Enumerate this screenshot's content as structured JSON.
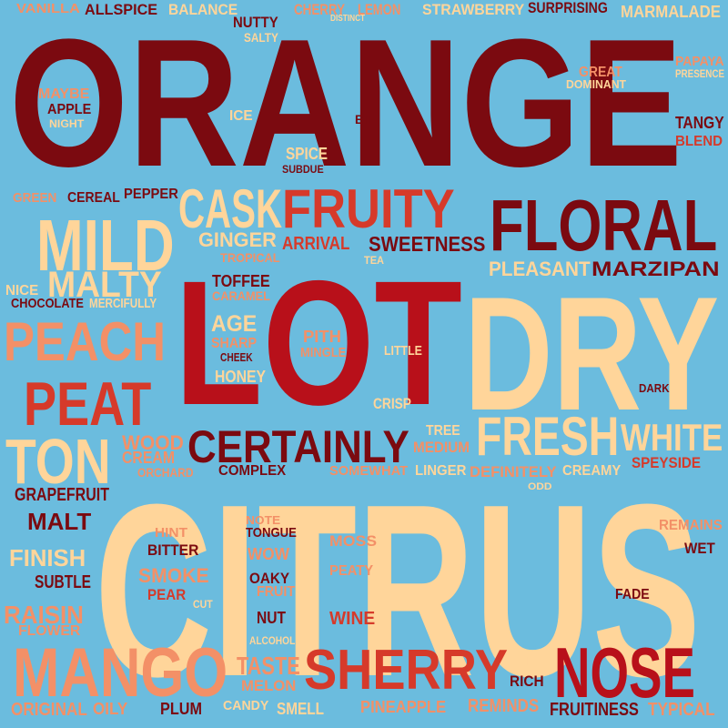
{
  "palette": {
    "background": "#6bbcde",
    "maroon": "#7b0a10",
    "red": "#b8101a",
    "tomato": "#d63a2a",
    "salmon": "#f39067",
    "peach": "#ffd59a"
  },
  "words": [
    {
      "id": "orange",
      "text": "ORANGE",
      "color": "maroon"
    },
    {
      "id": "citrus",
      "text": "CITRUS",
      "color": "peach"
    },
    {
      "id": "lot",
      "text": "LOT",
      "color": "red"
    },
    {
      "id": "dry",
      "text": "DRY",
      "color": "peach"
    },
    {
      "id": "floral",
      "text": "FLORAL",
      "color": "maroon"
    },
    {
      "id": "fruity",
      "text": "FRUITY",
      "color": "tomato"
    },
    {
      "id": "cask",
      "text": "CASK",
      "color": "peach"
    },
    {
      "id": "mild",
      "text": "MILD",
      "color": "peach"
    },
    {
      "id": "malty",
      "text": "MALTY",
      "color": "peach"
    },
    {
      "id": "peach",
      "text": "PEACH",
      "color": "salmon"
    },
    {
      "id": "peat",
      "text": "PEAT",
      "color": "tomato"
    },
    {
      "id": "ton",
      "text": "TON",
      "color": "peach"
    },
    {
      "id": "fresh",
      "text": "FRESH",
      "color": "peach"
    },
    {
      "id": "white",
      "text": "WHITE",
      "color": "peach"
    },
    {
      "id": "certainly",
      "text": "CERTAINLY",
      "color": "maroon"
    },
    {
      "id": "mango",
      "text": "MANGO",
      "color": "salmon"
    },
    {
      "id": "sherry",
      "text": "SHERRY",
      "color": "tomato"
    },
    {
      "id": "nose",
      "text": "NOSE",
      "color": "red"
    },
    {
      "id": "marzipan",
      "text": "MARZIPAN",
      "color": "maroon"
    },
    {
      "id": "pleasant",
      "text": "PLEASANT",
      "color": "peach"
    },
    {
      "id": "sweetness",
      "text": "SWEETNESS",
      "color": "maroon"
    },
    {
      "id": "arrival",
      "text": "ARRIVAL",
      "color": "tomato"
    },
    {
      "id": "ginger",
      "text": "GINGER",
      "color": "peach"
    },
    {
      "id": "tropical",
      "text": "TROPICAL",
      "color": "salmon"
    },
    {
      "id": "toffee",
      "text": "TOFFEE",
      "color": "maroon"
    },
    {
      "id": "caramel",
      "text": "CARAMEL",
      "color": "salmon"
    },
    {
      "id": "age",
      "text": "AGE",
      "color": "peach"
    },
    {
      "id": "sharp",
      "text": "SHARP",
      "color": "salmon"
    },
    {
      "id": "cheek",
      "text": "CHEEK",
      "color": "maroon"
    },
    {
      "id": "honey",
      "text": "HONEY",
      "color": "peach"
    },
    {
      "id": "pith",
      "text": "PITH",
      "color": "salmon"
    },
    {
      "id": "mingle",
      "text": "MINGLE",
      "color": "salmon"
    },
    {
      "id": "little",
      "text": "LITTLE",
      "color": "peach"
    },
    {
      "id": "crisp",
      "text": "CRISP",
      "color": "peach"
    },
    {
      "id": "tea",
      "text": "TEA",
      "color": "peach"
    },
    {
      "id": "vanilla",
      "text": "VANILLA",
      "color": "salmon"
    },
    {
      "id": "allspice",
      "text": "ALLSPICE",
      "color": "maroon"
    },
    {
      "id": "balance",
      "text": "BALANCE",
      "color": "peach"
    },
    {
      "id": "nutty",
      "text": "NUTTY",
      "color": "maroon"
    },
    {
      "id": "salty",
      "text": "SALTY",
      "color": "peach"
    },
    {
      "id": "cherry",
      "text": "CHERRY",
      "color": "salmon"
    },
    {
      "id": "distinct",
      "text": "DISTINCT",
      "color": "peach"
    },
    {
      "id": "lemon",
      "text": "LEMON",
      "color": "salmon"
    },
    {
      "id": "strawberry",
      "text": "STRAWBERRY",
      "color": "peach"
    },
    {
      "id": "surprising",
      "text": "SURPRISING",
      "color": "maroon"
    },
    {
      "id": "marmalade",
      "text": "MARMALADE",
      "color": "peach"
    },
    {
      "id": "papaya",
      "text": "PAPAYA",
      "color": "salmon"
    },
    {
      "id": "presence",
      "text": "PRESENCE",
      "color": "peach"
    },
    {
      "id": "great",
      "text": "GREAT",
      "color": "salmon"
    },
    {
      "id": "dominant",
      "text": "DOMINANT",
      "color": "peach"
    },
    {
      "id": "maybe",
      "text": "MAYBE",
      "color": "salmon"
    },
    {
      "id": "apple",
      "text": "APPLE",
      "color": "maroon"
    },
    {
      "id": "night",
      "text": "NIGHT",
      "color": "peach"
    },
    {
      "id": "ice",
      "text": "ICE",
      "color": "peach"
    },
    {
      "id": "bit",
      "text": "BIT",
      "color": "maroon"
    },
    {
      "id": "tangy",
      "text": "TANGY",
      "color": "maroon"
    },
    {
      "id": "blend",
      "text": "BLEND",
      "color": "tomato"
    },
    {
      "id": "spice",
      "text": "SPICE",
      "color": "peach"
    },
    {
      "id": "subdue",
      "text": "SUBDUE",
      "color": "maroon"
    },
    {
      "id": "green",
      "text": "GREEN",
      "color": "salmon"
    },
    {
      "id": "cereal",
      "text": "CEREAL",
      "color": "maroon"
    },
    {
      "id": "pepper",
      "text": "PEPPER",
      "color": "maroon"
    },
    {
      "id": "nice",
      "text": "NICE",
      "color": "peach"
    },
    {
      "id": "chocolate",
      "text": "CHOCOLATE",
      "color": "maroon"
    },
    {
      "id": "mercifully",
      "text": "MERCIFULLY",
      "color": "peach"
    },
    {
      "id": "dark",
      "text": "DARK",
      "color": "maroon"
    },
    {
      "id": "tree",
      "text": "TREE",
      "color": "peach"
    },
    {
      "id": "medium",
      "text": "MEDIUM",
      "color": "salmon"
    },
    {
      "id": "wood",
      "text": "WOOD",
      "color": "salmon"
    },
    {
      "id": "cream",
      "text": "CREAM",
      "color": "salmon"
    },
    {
      "id": "orchard",
      "text": "ORCHARD",
      "color": "salmon"
    },
    {
      "id": "complex",
      "text": "COMPLEX",
      "color": "maroon"
    },
    {
      "id": "somewhat",
      "text": "SOMEWHAT",
      "color": "salmon"
    },
    {
      "id": "linger",
      "text": "LINGER",
      "color": "peach"
    },
    {
      "id": "definitely",
      "text": "DEFINITELY",
      "color": "salmon"
    },
    {
      "id": "creamy",
      "text": "CREAMY",
      "color": "peach"
    },
    {
      "id": "speyside",
      "text": "SPEYSIDE",
      "color": "tomato"
    },
    {
      "id": "grapefruit",
      "text": "GRAPEFRUIT",
      "color": "maroon"
    },
    {
      "id": "odd",
      "text": "ODD",
      "color": "peach"
    },
    {
      "id": "malt",
      "text": "MALT",
      "color": "maroon"
    },
    {
      "id": "hint",
      "text": "HINT",
      "color": "salmon"
    },
    {
      "id": "note",
      "text": "NOTE",
      "color": "salmon"
    },
    {
      "id": "tongue",
      "text": "TONGUE",
      "color": "maroon"
    },
    {
      "id": "remains",
      "text": "REMAINS",
      "color": "salmon"
    },
    {
      "id": "finish",
      "text": "FINISH",
      "color": "peach"
    },
    {
      "id": "bitter",
      "text": "BITTER",
      "color": "maroon"
    },
    {
      "id": "wow",
      "text": "WOW",
      "color": "salmon"
    },
    {
      "id": "moss",
      "text": "MOSS",
      "color": "salmon"
    },
    {
      "id": "wet",
      "text": "WET",
      "color": "maroon"
    },
    {
      "id": "subtle",
      "text": "SUBTLE",
      "color": "maroon"
    },
    {
      "id": "smoke",
      "text": "SMOKE",
      "color": "salmon"
    },
    {
      "id": "peaty",
      "text": "PEATY",
      "color": "salmon"
    },
    {
      "id": "oaky",
      "text": "OAKY",
      "color": "maroon"
    },
    {
      "id": "pear",
      "text": "PEAR",
      "color": "tomato"
    },
    {
      "id": "fruit",
      "text": "FRUIT",
      "color": "salmon"
    },
    {
      "id": "raisin",
      "text": "RAISIN",
      "color": "salmon"
    },
    {
      "id": "cut",
      "text": "CUT",
      "color": "peach"
    },
    {
      "id": "fade",
      "text": "FADE",
      "color": "maroon"
    },
    {
      "id": "nut",
      "text": "NUT",
      "color": "maroon"
    },
    {
      "id": "wine",
      "text": "WINE",
      "color": "tomato"
    },
    {
      "id": "flower",
      "text": "FLOWER",
      "color": "salmon"
    },
    {
      "id": "alcohol",
      "text": "ALCOHOL",
      "color": "peach"
    },
    {
      "id": "taste",
      "text": "TASTE",
      "color": "salmon"
    },
    {
      "id": "ripe",
      "text": "RIPE",
      "color": "peach"
    },
    {
      "id": "rich",
      "text": "RICH",
      "color": "maroon"
    },
    {
      "id": "melon",
      "text": "MELON",
      "color": "salmon"
    },
    {
      "id": "candy",
      "text": "CANDY",
      "color": "peach"
    },
    {
      "id": "original",
      "text": "ORIGINAL",
      "color": "salmon"
    },
    {
      "id": "oily",
      "text": "OILY",
      "color": "salmon"
    },
    {
      "id": "plum",
      "text": "PLUM",
      "color": "maroon"
    },
    {
      "id": "smell",
      "text": "SMELL",
      "color": "peach"
    },
    {
      "id": "pineapple",
      "text": "PINEAPPLE",
      "color": "salmon"
    },
    {
      "id": "reminds",
      "text": "REMINDS",
      "color": "salmon"
    },
    {
      "id": "fruitiness",
      "text": "FRUITINESS",
      "color": "maroon"
    },
    {
      "id": "typical",
      "text": "TYPICAL",
      "color": "salmon"
    }
  ]
}
